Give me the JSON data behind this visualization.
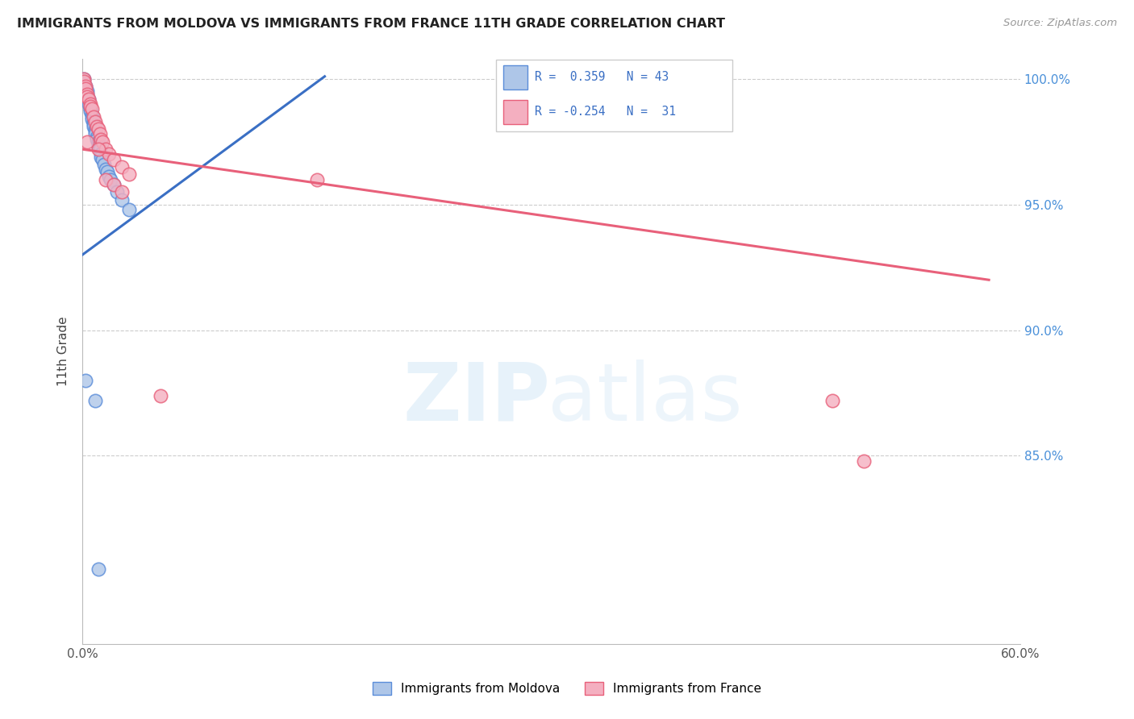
{
  "title": "IMMIGRANTS FROM MOLDOVA VS IMMIGRANTS FROM FRANCE 11TH GRADE CORRELATION CHART",
  "source": "Source: ZipAtlas.com",
  "ylabel": "11th Grade",
  "moldova_color": "#aec6e8",
  "france_color": "#f4afc0",
  "moldova_edge_color": "#5b8dd9",
  "france_edge_color": "#e8607a",
  "moldova_line_color": "#3a6fc4",
  "france_line_color": "#e8607a",
  "background_color": "#ffffff",
  "grid_color": "#cccccc",
  "xlim": [
    0.0,
    0.6
  ],
  "ylim": [
    0.775,
    1.008
  ],
  "moldova_trend_x0": 0.0,
  "moldova_trend_y0": 0.93,
  "moldova_trend_x1": 0.155,
  "moldova_trend_y1": 1.001,
  "france_trend_x0": 0.0,
  "france_trend_y0": 0.972,
  "france_trend_x1": 0.58,
  "france_trend_y1": 0.92,
  "moldova_x": [
    0.001,
    0.001,
    0.002,
    0.002,
    0.003,
    0.003,
    0.003,
    0.004,
    0.004,
    0.004,
    0.005,
    0.005,
    0.005,
    0.006,
    0.006,
    0.006,
    0.007,
    0.007,
    0.007,
    0.008,
    0.008,
    0.008,
    0.009,
    0.009,
    0.01,
    0.01,
    0.01,
    0.011,
    0.012,
    0.012,
    0.013,
    0.014,
    0.015,
    0.016,
    0.017,
    0.018,
    0.02,
    0.022,
    0.025,
    0.03,
    0.002,
    0.008,
    0.01
  ],
  "moldova_y": [
    1.0,
    0.998,
    0.997,
    0.996,
    0.995,
    0.994,
    0.993,
    0.992,
    0.991,
    0.99,
    0.988,
    0.988,
    0.987,
    0.986,
    0.985,
    0.984,
    0.983,
    0.982,
    0.981,
    0.98,
    0.979,
    0.978,
    0.977,
    0.976,
    0.975,
    0.974,
    0.973,
    0.972,
    0.97,
    0.969,
    0.968,
    0.966,
    0.964,
    0.963,
    0.961,
    0.96,
    0.958,
    0.955,
    0.952,
    0.948,
    0.88,
    0.872,
    0.805
  ],
  "france_x": [
    0.001,
    0.001,
    0.002,
    0.002,
    0.003,
    0.003,
    0.004,
    0.005,
    0.005,
    0.006,
    0.007,
    0.008,
    0.009,
    0.01,
    0.011,
    0.012,
    0.013,
    0.015,
    0.017,
    0.02,
    0.025,
    0.03,
    0.003,
    0.01,
    0.015,
    0.02,
    0.025,
    0.05,
    0.15,
    0.48,
    0.5
  ],
  "france_y": [
    1.0,
    0.999,
    0.997,
    0.996,
    0.994,
    0.993,
    0.992,
    0.99,
    0.989,
    0.988,
    0.985,
    0.983,
    0.981,
    0.98,
    0.978,
    0.976,
    0.975,
    0.972,
    0.97,
    0.968,
    0.965,
    0.962,
    0.975,
    0.972,
    0.96,
    0.958,
    0.955,
    0.874,
    0.96,
    0.872,
    0.848
  ]
}
